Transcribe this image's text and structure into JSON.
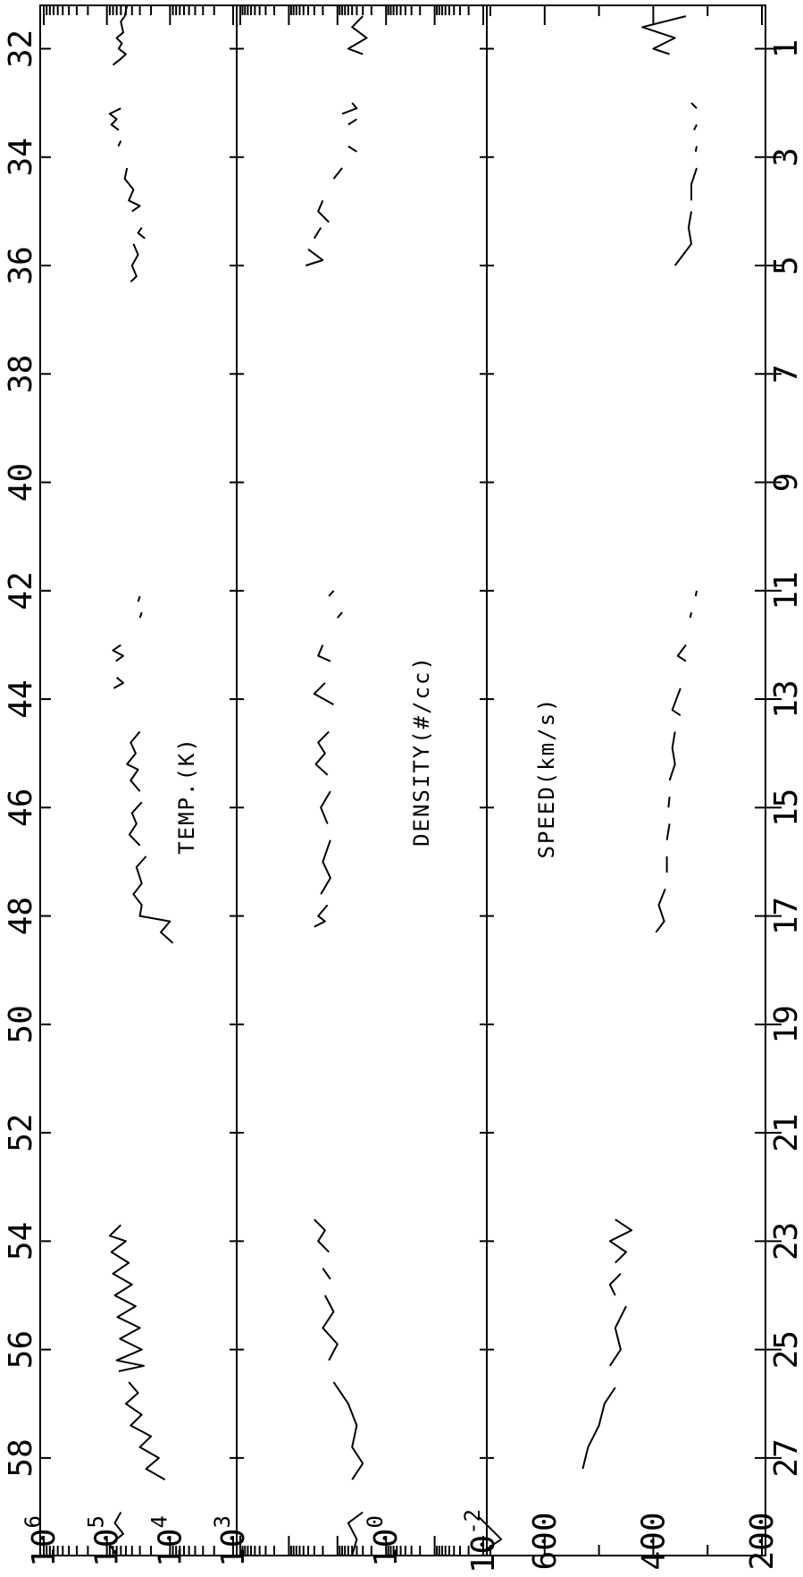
{
  "chart_data": {
    "type": "line",
    "x_axis": {
      "scale": "linear",
      "range": [
        31.2,
        59.8
      ],
      "top_ticks": [
        32,
        34,
        36,
        38,
        40,
        42,
        44,
        46,
        48,
        50,
        52,
        54,
        56,
        58
      ],
      "top_tick_labels": [
        "32",
        "34",
        "36",
        "38",
        "40",
        "42",
        "44",
        "46",
        "48",
        "50",
        "52",
        "54",
        "56",
        "58"
      ],
      "bottom_ticks": [
        1,
        3,
        5,
        7,
        9,
        11,
        13,
        15,
        17,
        19,
        21,
        23,
        25,
        27
      ],
      "bottom_tick_labels": [
        "1",
        "3",
        "5",
        "7",
        "9",
        "11",
        "13",
        "15",
        "17",
        "19",
        "21",
        "23",
        "25",
        "27"
      ]
    },
    "panels": [
      {
        "id": "temp",
        "title": "TEMP.(K)",
        "scale": "log",
        "range": [
          1000,
          1000000
        ],
        "tick_labels": [
          {
            "base": "10",
            "exp": "6",
            "value": 1000000
          },
          {
            "base": "10",
            "exp": "5",
            "value": 100000
          },
          {
            "base": "10",
            "exp": "4",
            "value": 10000
          },
          {
            "base": "10",
            "exp": "3",
            "value": 1000
          }
        ],
        "segments": [
          [
            [
              31.2,
              48000
            ],
            [
              31.4,
              52000
            ],
            [
              31.5,
              60000
            ],
            [
              31.7,
              55000
            ],
            [
              31.8,
              70000
            ],
            [
              31.9,
              58000
            ],
            [
              32.0,
              65000
            ],
            [
              32.1,
              50000
            ],
            [
              32.2,
              62000
            ],
            [
              32.3,
              80000
            ]
          ],
          [
            [
              33.1,
              60000
            ],
            [
              33.2,
              90000
            ],
            [
              33.3,
              70000
            ],
            [
              33.4,
              85000
            ],
            [
              33.5,
              65000
            ]
          ],
          [
            [
              33.7,
              60000
            ],
            [
              33.8,
              66000
            ]
          ],
          [
            [
              34.2,
              48000
            ],
            [
              34.4,
              52000
            ],
            [
              34.6,
              38000
            ],
            [
              34.8,
              45000
            ],
            [
              34.9,
              30000
            ],
            [
              35.0,
              40000
            ]
          ],
          [
            [
              35.3,
              28000
            ],
            [
              35.4,
              32000
            ],
            [
              35.5,
              25000
            ]
          ],
          [
            [
              35.6,
              38000
            ],
            [
              35.8,
              32000
            ],
            [
              36.0,
              40000
            ],
            [
              36.2,
              34000
            ],
            [
              36.3,
              42000
            ]
          ],
          [
            [
              42.1,
              30000
            ],
            [
              42.2,
              32000
            ]
          ],
          [
            [
              42.4,
              28000
            ],
            [
              42.5,
              30000
            ]
          ],
          [
            [
              43.0,
              60000
            ],
            [
              43.1,
              80000
            ],
            [
              43.2,
              55000
            ],
            [
              43.3,
              72000
            ]
          ],
          [
            [
              43.6,
              70000
            ],
            [
              43.7,
              55000
            ],
            [
              43.8,
              78000
            ]
          ],
          [
            [
              44.6,
              30000
            ],
            [
              44.8,
              42000
            ],
            [
              45.0,
              35000
            ],
            [
              45.2,
              48000
            ],
            [
              45.3,
              32000
            ],
            [
              45.5,
              42000
            ],
            [
              45.7,
              30000
            ]
          ],
          [
            [
              45.9,
              28000
            ],
            [
              46.1,
              40000
            ],
            [
              46.3,
              34000
            ],
            [
              46.5,
              44000
            ],
            [
              46.7,
              30000
            ]
          ],
          [
            [
              46.9,
              24000
            ],
            [
              47.1,
              34000
            ],
            [
              47.4,
              28000
            ],
            [
              47.6,
              38000
            ],
            [
              47.8,
              28000
            ],
            [
              48.0,
              30000
            ],
            [
              48.1,
              10000
            ],
            [
              48.3,
              14000
            ],
            [
              48.5,
              9000
            ]
          ],
          [
            [
              53.7,
              60000
            ],
            [
              53.9,
              90000
            ],
            [
              54.0,
              50000
            ],
            [
              54.2,
              85000
            ],
            [
              54.4,
              45000
            ],
            [
              54.6,
              80000
            ],
            [
              54.8,
              40000
            ],
            [
              55.0,
              75000
            ],
            [
              55.2,
              35000
            ],
            [
              55.4,
              68000
            ],
            [
              55.6,
              30000
            ],
            [
              55.8,
              62000
            ],
            [
              56.0,
              28000
            ],
            [
              56.2,
              70000
            ],
            [
              56.3,
              26000
            ],
            [
              56.4,
              65000
            ]
          ],
          [
            [
              56.6,
              45000
            ],
            [
              56.8,
              32000
            ],
            [
              57.0,
              50000
            ],
            [
              57.2,
              28000
            ],
            [
              57.4,
              42000
            ],
            [
              57.6,
              20000
            ],
            [
              57.8,
              30000
            ],
            [
              58.0,
              15000
            ],
            [
              58.2,
              24000
            ],
            [
              58.4,
              12000
            ]
          ],
          [
            [
              59.0,
              60000
            ],
            [
              59.2,
              75000
            ],
            [
              59.4,
              55000
            ],
            [
              59.6,
              90000
            ],
            [
              59.8,
              70000
            ]
          ]
        ]
      },
      {
        "id": "density",
        "title": "DENSITY(#/cc)",
        "scale": "log",
        "range": [
          0.01,
          1000
        ],
        "tick_labels": [
          {
            "base": "10",
            "exp": "0",
            "value": 1
          },
          {
            "base": "10",
            "exp": "-2",
            "value": 0.01
          }
        ],
        "segments": [
          [
            [
              31.4,
              3
            ],
            [
              31.6,
              5
            ],
            [
              31.8,
              2.5
            ],
            [
              32.0,
              6
            ],
            [
              32.1,
              3
            ]
          ],
          [
            [
              33.0,
              5
            ],
            [
              33.1,
              4
            ],
            [
              33.2,
              8
            ]
          ],
          [
            [
              33.3,
              4
            ],
            [
              33.4,
              6
            ]
          ],
          [
            [
              33.8,
              6
            ],
            [
              33.9,
              4
            ]
          ],
          [
            [
              34.2,
              8
            ],
            [
              34.4,
              12
            ]
          ],
          [
            [
              34.8,
              20
            ],
            [
              35.0,
              25
            ],
            [
              35.2,
              15
            ]
          ],
          [
            [
              35.3,
              22
            ],
            [
              35.5,
              30
            ]
          ],
          [
            [
              35.7,
              40
            ],
            [
              35.9,
              20
            ],
            [
              36.0,
              45
            ]
          ],
          [
            [
              42.0,
              12
            ],
            [
              42.1,
              15
            ]
          ],
          [
            [
              42.4,
              8
            ],
            [
              42.5,
              10
            ]
          ],
          [
            [
              43.0,
              20
            ],
            [
              43.2,
              25
            ],
            [
              43.3,
              14
            ]
          ],
          [
            [
              43.7,
              18
            ],
            [
              43.9,
              30
            ],
            [
              44.1,
              12
            ]
          ],
          [
            [
              44.6,
              15
            ],
            [
              44.8,
              25
            ],
            [
              45.0,
              18
            ],
            [
              45.2,
              28
            ],
            [
              45.4,
              16
            ]
          ],
          [
            [
              45.7,
              14
            ],
            [
              46.0,
              22
            ],
            [
              46.3,
              16
            ]
          ],
          [
            [
              46.6,
              14
            ],
            [
              47.0,
              20
            ],
            [
              47.3,
              14
            ],
            [
              47.6,
              22
            ]
          ],
          [
            [
              47.8,
              16
            ],
            [
              48.0,
              25
            ],
            [
              48.1,
              18
            ],
            [
              48.2,
              30
            ]
          ],
          [
            [
              53.6,
              30
            ],
            [
              53.8,
              18
            ],
            [
              54.0,
              25
            ],
            [
              54.2,
              15
            ]
          ],
          [
            [
              54.5,
              20
            ],
            [
              54.7,
              14
            ]
          ],
          [
            [
              55.0,
              18
            ],
            [
              55.3,
              12
            ],
            [
              55.6,
              20
            ],
            [
              55.9,
              10
            ],
            [
              56.2,
              15
            ]
          ],
          [
            [
              56.6,
              12
            ],
            [
              57.0,
              6
            ],
            [
              57.4,
              4
            ],
            [
              57.8,
              5
            ],
            [
              58.1,
              3
            ],
            [
              58.4,
              5
            ]
          ],
          [
            [
              59.0,
              3
            ],
            [
              59.2,
              6
            ],
            [
              59.5,
              4
            ],
            [
              59.8,
              5
            ]
          ]
        ]
      },
      {
        "id": "speed",
        "title": "SPEED(km/s)",
        "scale": "linear",
        "range": [
          200,
          700
        ],
        "tick_labels": [
          {
            "base": "600",
            "exp": "",
            "value": 600
          },
          {
            "base": "400",
            "exp": "",
            "value": 400
          },
          {
            "base": "200",
            "exp": "",
            "value": 200
          }
        ],
        "segments": [
          [
            [
              31.4,
              340
            ],
            [
              31.6,
              420
            ],
            [
              31.8,
              360
            ],
            [
              32.0,
              400
            ],
            [
              32.1,
              370
            ]
          ],
          [
            [
              33.0,
              330
            ],
            [
              33.1,
              320
            ]
          ],
          [
            [
              33.4,
              320
            ],
            [
              33.5,
              325
            ]
          ],
          [
            [
              33.8,
              320
            ],
            [
              33.9,
              322
            ]
          ],
          [
            [
              34.2,
              320
            ],
            [
              34.5,
              330
            ],
            [
              34.8,
              330
            ]
          ],
          [
            [
              35.0,
              330
            ],
            [
              35.3,
              335
            ],
            [
              35.6,
              330
            ],
            [
              36.0,
              360
            ]
          ],
          [
            [
              42.0,
              320
            ],
            [
              42.1,
              322
            ]
          ],
          [
            [
              42.4,
              330
            ],
            [
              42.5,
              332
            ]
          ],
          [
            [
              43.0,
              340
            ],
            [
              43.2,
              355
            ],
            [
              43.3,
              340
            ]
          ],
          [
            [
              43.8,
              350
            ],
            [
              44.2,
              365
            ],
            [
              44.3,
              350
            ]
          ],
          [
            [
              44.6,
              360
            ],
            [
              44.9,
              365
            ],
            [
              45.2,
              360
            ],
            [
              45.5,
              370
            ]
          ],
          [
            [
              45.8,
              370
            ],
            [
              46.0,
              372
            ]
          ],
          [
            [
              46.3,
              370
            ],
            [
              46.6,
              375
            ]
          ],
          [
            [
              46.9,
              375
            ],
            [
              47.2,
              375
            ]
          ],
          [
            [
              47.5,
              378
            ],
            [
              47.8,
              390
            ],
            [
              48.1,
              380
            ],
            [
              48.3,
              395
            ]
          ],
          [
            [
              53.6,
              470
            ],
            [
              53.8,
              440
            ],
            [
              54.0,
              480
            ],
            [
              54.2,
              450
            ],
            [
              54.4,
              470
            ]
          ],
          [
            [
              54.6,
              460
            ],
            [
              54.8,
              480
            ],
            [
              55.0,
              470
            ]
          ],
          [
            [
              55.2,
              450
            ],
            [
              55.6,
              470
            ],
            [
              56.0,
              460
            ],
            [
              56.3,
              480
            ]
          ],
          [
            [
              56.7,
              470
            ],
            [
              57.0,
              490
            ],
            [
              57.4,
              500
            ],
            [
              57.8,
              520
            ],
            [
              58.2,
              530
            ]
          ],
          [
            [
              59.1,
              720
            ],
            [
              59.3,
              700
            ],
            [
              59.5,
              680
            ],
            [
              59.7,
              710
            ]
          ]
        ]
      }
    ]
  }
}
